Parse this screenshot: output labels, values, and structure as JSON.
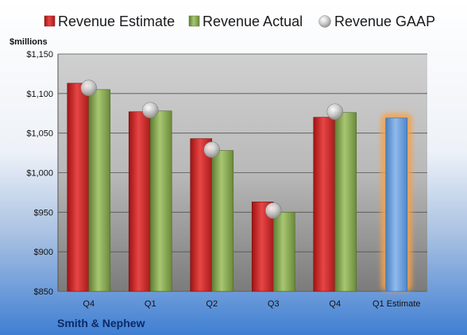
{
  "chart_data": {
    "type": "bar",
    "unit_label": "$millions",
    "company": "Smith & Nephew",
    "categories": [
      "Q4",
      "Q1",
      "Q2",
      "Q3",
      "Q4",
      "Q1 Estimate"
    ],
    "ylim": [
      850,
      1150
    ],
    "yticks": [
      850,
      900,
      950,
      1000,
      1050,
      1100,
      1150
    ],
    "ytick_labels": [
      "$850",
      "$900",
      "$950",
      "$1,000",
      "$1,050",
      "$1,100",
      "$1,150"
    ],
    "grid": true,
    "legend_position": "top",
    "series": [
      {
        "name": "Revenue Estimate",
        "kind": "bar",
        "color": "#d92b2b",
        "values": [
          1113,
          1077,
          1043,
          963,
          1070,
          null
        ]
      },
      {
        "name": "Revenue Actual",
        "kind": "bar",
        "color": "#8fb35a",
        "values": [
          1105,
          1078,
          1028,
          950,
          1076,
          null
        ]
      },
      {
        "name": "Revenue GAAP",
        "kind": "marker",
        "color": "#b5b5b5",
        "values": [
          1107,
          1079,
          1029,
          952,
          1077,
          null
        ]
      },
      {
        "name": "Q1 Estimate",
        "kind": "bar",
        "color": "#6fa0d8",
        "highlight": "#f5a24a",
        "values": [
          null,
          null,
          null,
          null,
          null,
          1069
        ]
      }
    ]
  }
}
